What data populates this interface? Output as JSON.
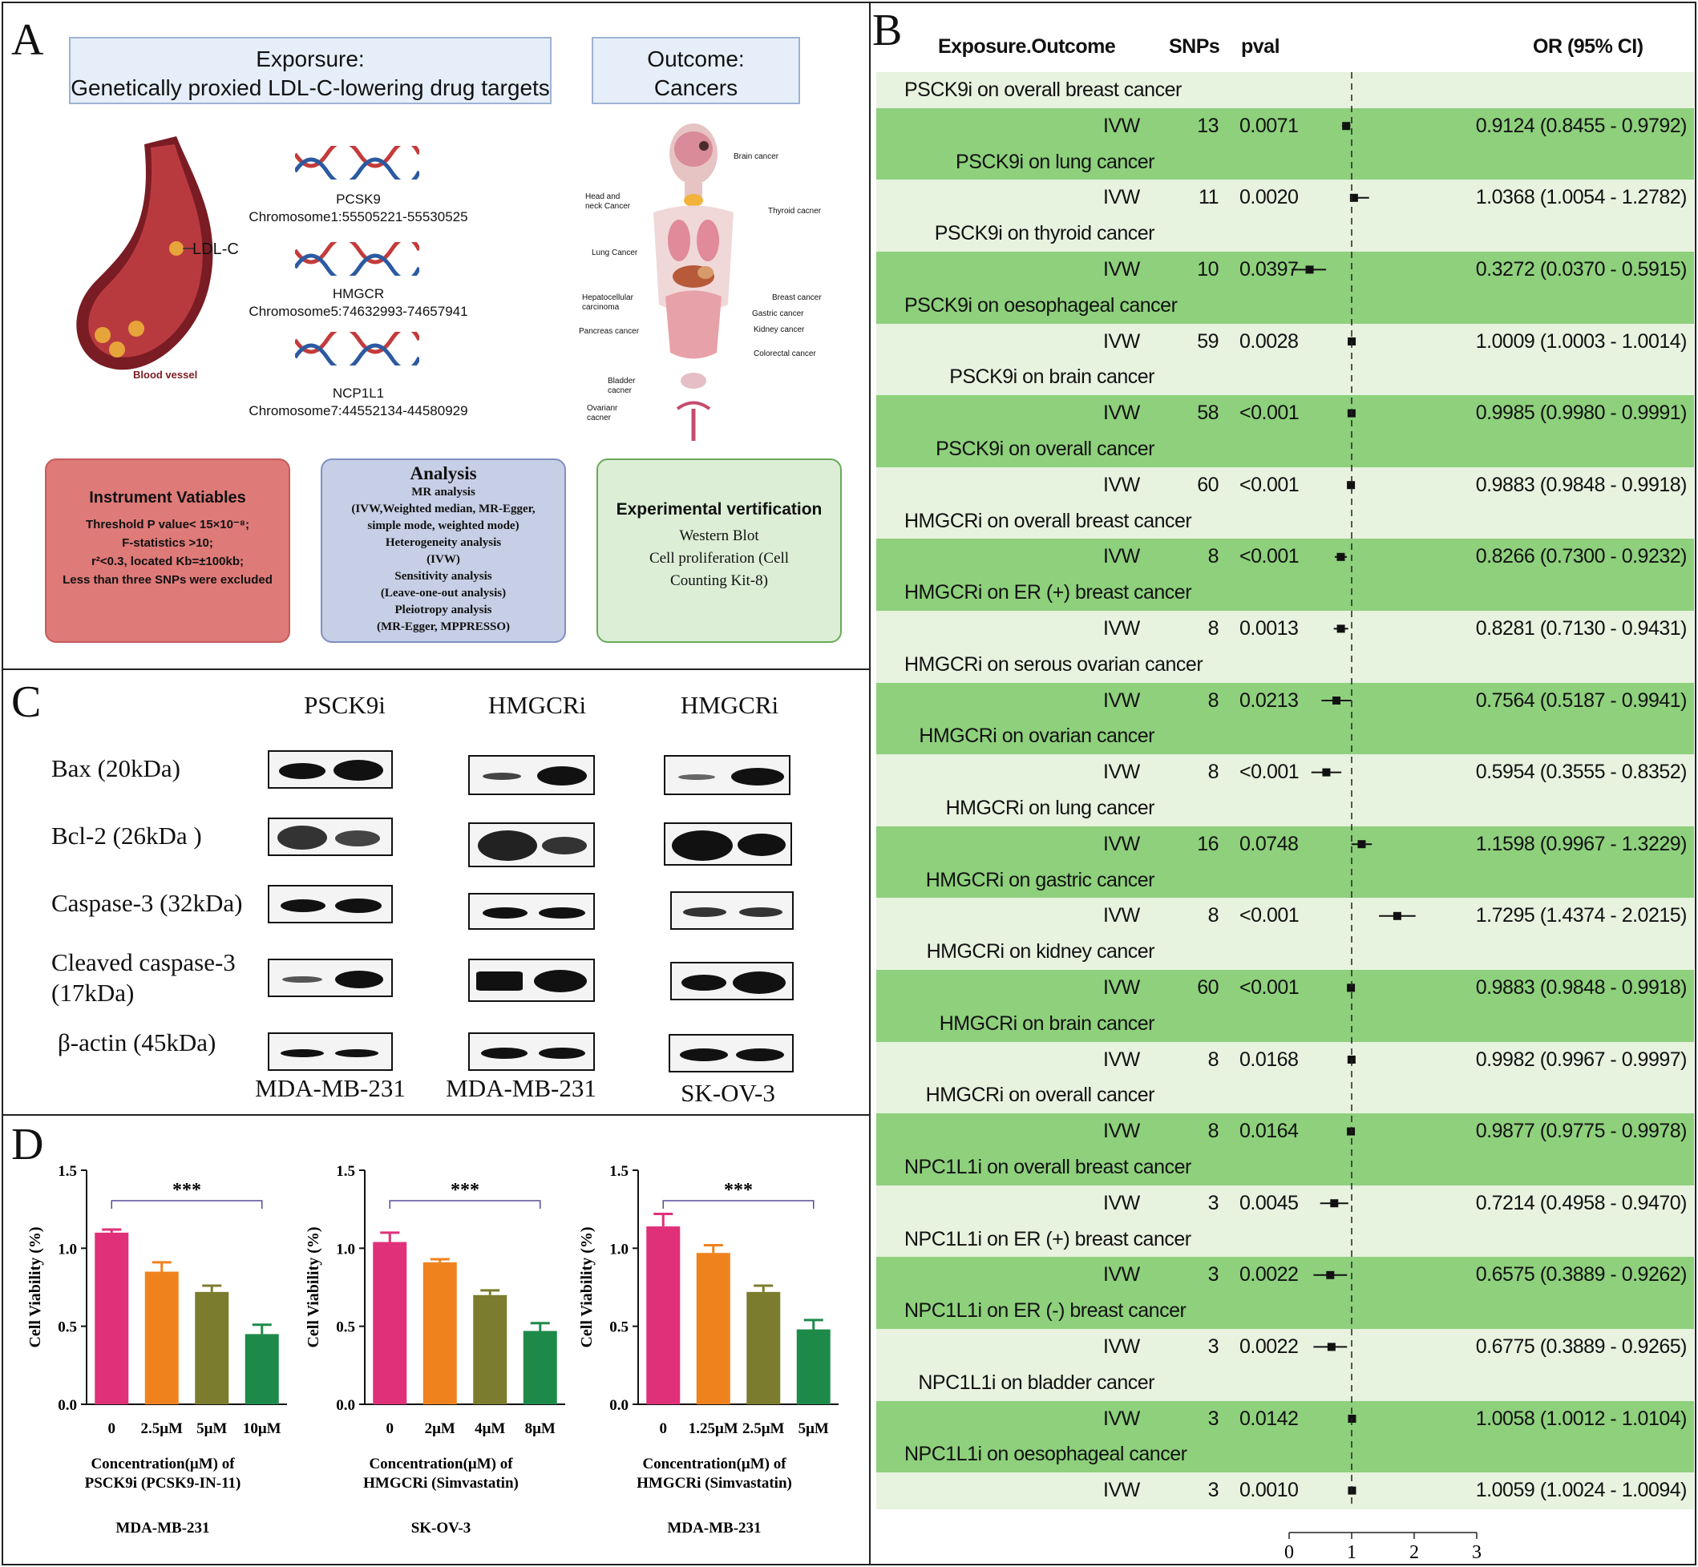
{
  "panelA": {
    "letter": "A",
    "exposure_title": "Exporsure:",
    "exposure_sub": "Genetically proxied LDL-C-lowering drug targets",
    "outcome_title": "Outcome:",
    "outcome_sub": "Cancers",
    "vessel_ldl": "LDL-C",
    "vessel_label": "Blood vessel",
    "genes": [
      {
        "name": "PCSK9",
        "loc": "Chromosome1:55505221-55530525"
      },
      {
        "name": "HMGCR",
        "loc": "Chromosome5:74632993-74657941"
      },
      {
        "name": "NCP1L1",
        "loc": "Chromosome7:44552134-44580929"
      }
    ],
    "organs": [
      "Brain cancer",
      "Head and neck Cancer",
      "Thyroid cacner",
      "Lung Cancer",
      "Breast cancer",
      "Hepatocellular carcinoma",
      "Gastric cancer",
      "Pancreas cancer",
      "Kidney cancer",
      "Colorectal cancer",
      "Bladder cacner",
      "Ovarianr cacner"
    ],
    "instrument": {
      "title": "Instrument Vatiables",
      "lines": [
        "Threshold P value< 15×10⁻⁸;",
        "F-statistics >10;",
        "r²<0.3, located Kb=±100kb;",
        "Less than three SNPs were excluded"
      ]
    },
    "analysis": {
      "title": "Analysis",
      "lines": [
        "MR analysis",
        "(IVW,Weighted median, MR-Egger,",
        "simple mode, weighted mode)",
        "Heterogeneity analysis",
        "(IVW)",
        "Sensitivity analysis",
        "(Leave-one-out analysis)",
        "Pleiotropy analysis",
        "(MR-Egger, MPPRESSO)"
      ]
    },
    "experimental": {
      "title": "Experimental vertification",
      "lines": [
        "Western Blot",
        "Cell proliferation (Cell",
        "Counting Kit-8)"
      ]
    },
    "colors": {
      "exposure_fill": "#e5eef9",
      "instrument_fill": "#de7a78",
      "analysis_fill": "#c7cfe6",
      "experimental_fill": "#dcefd6"
    }
  },
  "panelB": {
    "letter": "B",
    "headers": {
      "exposure": "Exposure.Outcome",
      "snps": "SNPs",
      "pval": "pval",
      "or": "OR (95% CI)"
    },
    "axis_ticks": [
      "0",
      "1",
      "2",
      "3"
    ],
    "colors": {
      "light": "#e7f2df",
      "dark": "#8ed07c"
    },
    "rows": [
      {
        "label": "PSCK9i  on overall breast cancer",
        "method": "IVW",
        "snps": "13",
        "pval": "0.0071",
        "or_text": "0.9124 (0.8455 - 0.9792)",
        "or": 0.9124,
        "lo": 0.8455,
        "hi": 0.9792
      },
      {
        "label": "PSCK9i  on lung cancer",
        "method": "IVW",
        "snps": "11",
        "pval": "0.0020",
        "or_text": "1.0368 (1.0054 - 1.2782)",
        "or": 1.0368,
        "lo": 1.0054,
        "hi": 1.2782
      },
      {
        "label": "PSCK9i  on thyroid cancer",
        "method": "IVW",
        "snps": "10",
        "pval": "0.0397",
        "or_text": "0.3272 (0.0370 - 0.5915)",
        "or": 0.3272,
        "lo": 0.037,
        "hi": 0.5915
      },
      {
        "label": "PSCK9i  on oesophageal cancer",
        "method": "IVW",
        "snps": "59",
        "pval": "0.0028",
        "or_text": "1.0009 (1.0003 - 1.0014)",
        "or": 1.0009,
        "lo": 1.0003,
        "hi": 1.0014
      },
      {
        "label": "PSCK9i  on brain cancer",
        "method": "IVW",
        "snps": "58",
        "pval": "<0.001",
        "or_text": "0.9985 (0.9980 - 0.9991)",
        "or": 0.9985,
        "lo": 0.998,
        "hi": 0.9991
      },
      {
        "label": "PSCK9i  on overall cancer",
        "method": "IVW",
        "snps": "60",
        "pval": "<0.001",
        "or_text": "0.9883 (0.9848 - 0.9918)",
        "or": 0.9883,
        "lo": 0.9848,
        "hi": 0.9918
      },
      {
        "label": "HMGCRi  on overall breast cancer",
        "method": "IVW",
        "snps": "8",
        "pval": "<0.001",
        "or_text": "0.8266 (0.7300 - 0.9232)",
        "or": 0.8266,
        "lo": 0.73,
        "hi": 0.9232
      },
      {
        "label": "HMGCRi on ER (+) breast cancer",
        "method": "IVW",
        "snps": "8",
        "pval": "0.0013",
        "or_text": "0.8281 (0.7130 - 0.9431)",
        "or": 0.8281,
        "lo": 0.713,
        "hi": 0.9431
      },
      {
        "label": "HMGCRi on serous ovarian cancer",
        "method": "IVW",
        "snps": "8",
        "pval": "0.0213",
        "or_text": "0.7564 (0.5187 - 0.9941)",
        "or": 0.7564,
        "lo": 0.5187,
        "hi": 0.9941
      },
      {
        "label": "HMGCRi on ovarian cancer",
        "method": "IVW",
        "snps": "8",
        "pval": "<0.001",
        "or_text": "0.5954 (0.3555 - 0.8352)",
        "or": 0.5954,
        "lo": 0.3555,
        "hi": 0.8352
      },
      {
        "label": "HMGCRi on lung cancer",
        "method": "IVW",
        "snps": "16",
        "pval": "0.0748",
        "or_text": "1.1598 (0.9967 - 1.3229)",
        "or": 1.1598,
        "lo": 0.9967,
        "hi": 1.3229
      },
      {
        "label": "HMGCRi on gastric cancer",
        "method": "IVW",
        "snps": "8",
        "pval": "<0.001",
        "or_text": "1.7295 (1.4374 - 2.0215)",
        "or": 1.7295,
        "lo": 1.4374,
        "hi": 2.0215
      },
      {
        "label": "HMGCRi on kidney cancer",
        "method": "IVW",
        "snps": "60",
        "pval": "<0.001",
        "or_text": "0.9883 (0.9848 - 0.9918)",
        "or": 0.9883,
        "lo": 0.9848,
        "hi": 0.9918
      },
      {
        "label": "HMGCRi on brain cancer",
        "method": "IVW",
        "snps": "8",
        "pval": "0.0168",
        "or_text": "0.9982 (0.9967 - 0.9997)",
        "or": 0.9982,
        "lo": 0.9967,
        "hi": 0.9997
      },
      {
        "label": "HMGCRi on overall cancer",
        "method": "IVW",
        "snps": "8",
        "pval": "0.0164",
        "or_text": "0.9877 (0.9775 - 0.9978)",
        "or": 0.9877,
        "lo": 0.9775,
        "hi": 0.9978
      },
      {
        "label": "NPC1L1i  on overall breast cancer",
        "method": "IVW",
        "snps": "3",
        "pval": "0.0045",
        "or_text": "0.7214 (0.4958 - 0.9470)",
        "or": 0.7214,
        "lo": 0.4958,
        "hi": 0.947
      },
      {
        "label": "NPC1L1i on ER (+) breast cancer",
        "method": "IVW",
        "snps": "3",
        "pval": "0.0022",
        "or_text": "0.6575 (0.3889 - 0.9262)",
        "or": 0.6575,
        "lo": 0.3889,
        "hi": 0.9262
      },
      {
        "label": "NPC1L1i on ER (-) breast cancer",
        "method": "IVW",
        "snps": "3",
        "pval": "0.0022",
        "or_text": "0.6775 (0.3889 - 0.9265)",
        "or": 0.6775,
        "lo": 0.3889,
        "hi": 0.9265
      },
      {
        "label": "NPC1L1i on bladder cancer",
        "method": "IVW",
        "snps": "3",
        "pval": "0.0142",
        "or_text": "1.0058 (1.0012 - 1.0104)",
        "or": 1.0058,
        "lo": 1.0012,
        "hi": 1.0104
      },
      {
        "label": "NPC1L1i on oesophageal cancer",
        "method": "IVW",
        "snps": "3",
        "pval": "0.0010",
        "or_text": "1.0059 (1.0024 - 1.0094)",
        "or": 1.0059,
        "lo": 1.0024,
        "hi": 1.0094
      }
    ]
  },
  "panelC": {
    "letter": "C",
    "columns": [
      "PSCK9i",
      "HMGCRi",
      "HMGCRi"
    ],
    "cell_lines": [
      "MDA-MB-231",
      "MDA-MB-231",
      "SK-OV-3"
    ],
    "proteins": [
      "Bax (20kDa)",
      "Bcl-2 (26kDa )",
      "Caspase-3 (32kDa)",
      "Cleaved caspase-3",
      "(17kDa)",
      "β-actin (45kDa)"
    ]
  },
  "panelD": {
    "letter": "D",
    "significance": "***",
    "ylabel": "Cell Viability (%)",
    "bar_colors": [
      "#e0307a",
      "#f0821e",
      "#7c7c2e",
      "#1e8a4a"
    ],
    "charts": [
      {
        "xlabel_1": "Concentration(μM) of",
        "xlabel_2": "PSCK9i (PCSK9-IN-11)",
        "cell_line": "MDA-MB-231"
      },
      {
        "xlabel_1": "Concentration(μM) of",
        "xlabel_2": "HMGCRi (Simvastatin)",
        "cell_line": "SK-OV-3"
      },
      {
        "xlabel_1": "Concentration(μM) of",
        "xlabel_2": "HMGCRi (Simvastatin)",
        "cell_line": "MDA-MB-231"
      }
    ]
  },
  "chart_data": [
    {
      "type": "bar",
      "categories": [
        "0",
        "2.5μM",
        "5μM",
        "10μM"
      ],
      "values": [
        1.1,
        0.85,
        0.72,
        0.45
      ],
      "errors": [
        0.02,
        0.06,
        0.04,
        0.06
      ],
      "ylabel": "Cell Viability (%)",
      "xlabel": "Concentration(μM) of PSCK9i (PCSK9-IN-11)",
      "ylim": [
        0,
        1.5
      ],
      "yticks": [
        "0.0",
        "0.5",
        "1.0",
        "1.5"
      ],
      "annotation": "***"
    },
    {
      "type": "bar",
      "categories": [
        "0",
        "2μM",
        "4μM",
        "8μM"
      ],
      "values": [
        1.04,
        0.91,
        0.7,
        0.47
      ],
      "errors": [
        0.06,
        0.02,
        0.03,
        0.05
      ],
      "ylabel": "Cell Viability (%)",
      "xlabel": "Concentration(μM) of HMGCRi (Simvastatin)",
      "ylim": [
        0,
        1.5
      ],
      "yticks": [
        "0.0",
        "0.5",
        "1.0",
        "1.5"
      ],
      "annotation": "***"
    },
    {
      "type": "bar",
      "categories": [
        "0",
        "1.25μM",
        "2.5μM",
        "5μM"
      ],
      "values": [
        1.14,
        0.97,
        0.72,
        0.48
      ],
      "errors": [
        0.08,
        0.05,
        0.04,
        0.06
      ],
      "ylabel": "Cell Viability (%)",
      "xlabel": "Concentration(μM) of HMGCRi (Simvastatin)",
      "ylim": [
        0,
        1.5
      ],
      "yticks": [
        "0.0",
        "0.5",
        "1.0",
        "1.5"
      ],
      "annotation": "***"
    }
  ]
}
